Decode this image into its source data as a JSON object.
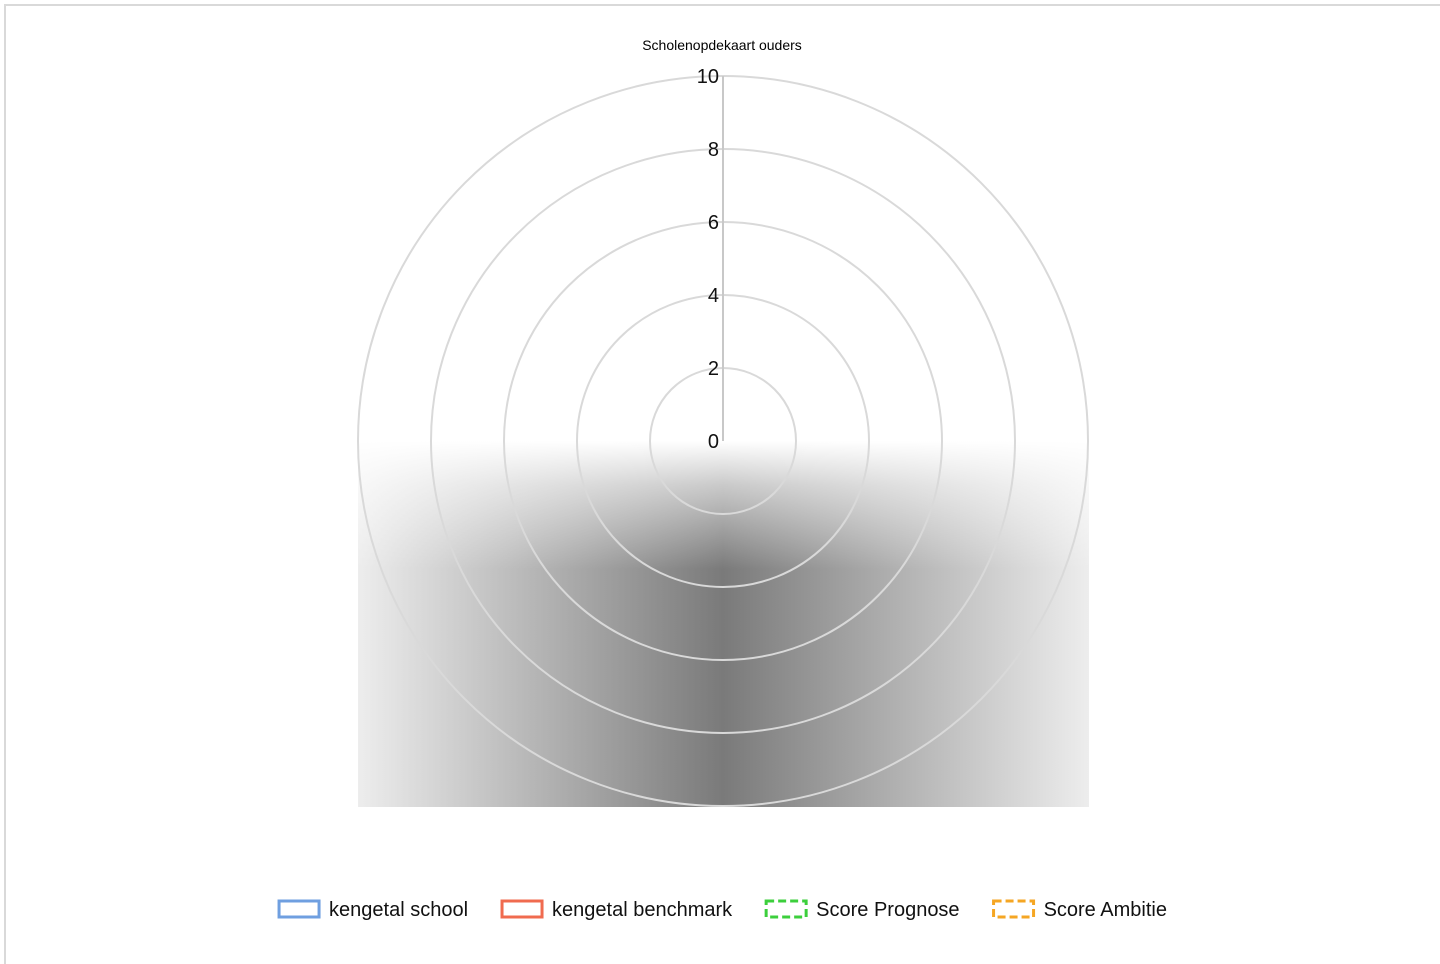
{
  "chart_data": {
    "type": "radar",
    "title": "Scholenopdekaart ouders",
    "r_range": [
      0,
      10
    ],
    "r_ticks": [
      "0",
      "2",
      "4",
      "6",
      "8",
      "10"
    ],
    "grid": true,
    "legend_position": "bottom",
    "series": [
      {
        "name": "kengetal school",
        "color": "#6f9fe0",
        "style": "solid"
      },
      {
        "name": "kengetal benchmark",
        "color": "#f06b4f",
        "style": "solid"
      },
      {
        "name": "Score Prognose",
        "color": "#3ccf3c",
        "style": "dashed"
      },
      {
        "name": "Score Ambitie",
        "color": "#f5a623",
        "style": "dashed"
      }
    ]
  }
}
